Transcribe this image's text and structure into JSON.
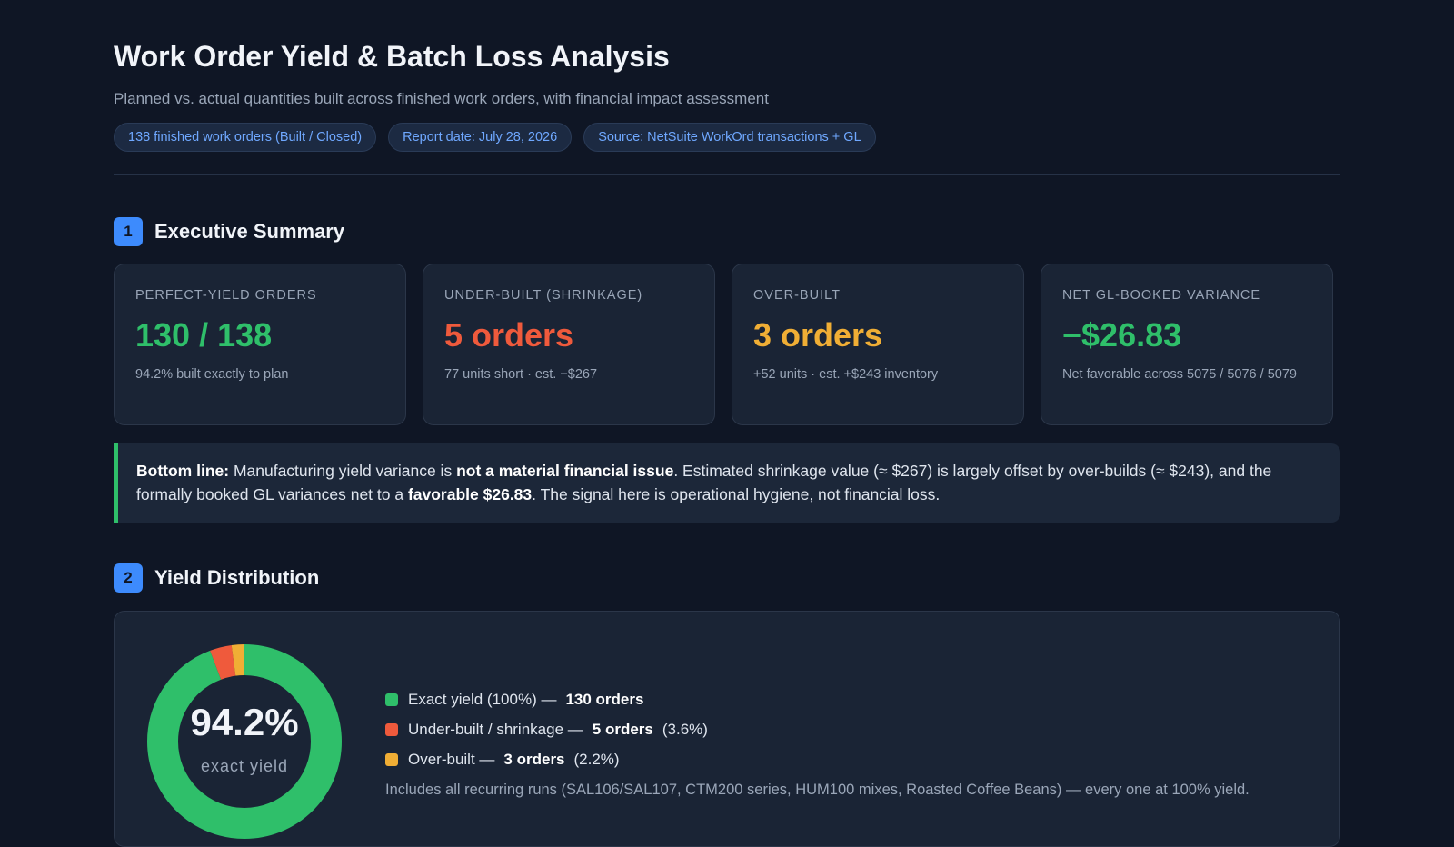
{
  "header": {
    "title": "Work Order Yield & Batch Loss Analysis",
    "subtitle": "Planned vs. actual quantities built across finished work orders, with financial impact assessment",
    "chips": [
      "138 finished work orders (Built / Closed)",
      "Report date: July 28, 2026",
      "Source: NetSuite WorkOrd transactions + GL"
    ]
  },
  "sections": {
    "summary": {
      "number": "1",
      "title": "Executive Summary"
    },
    "distribution": {
      "number": "2",
      "title": "Yield Distribution"
    }
  },
  "cards": [
    {
      "label": "PERFECT-YIELD ORDERS",
      "value": "130 / 138",
      "note": "94.2% built exactly to plan",
      "color": "#2fbf6a"
    },
    {
      "label": "UNDER-BUILT (SHRINKAGE)",
      "value": "5 orders",
      "note": "77 units short · est. −$267",
      "color": "#ef5a3c"
    },
    {
      "label": "OVER-BUILT",
      "value": "3 orders",
      "note": "+52 units · est. +$243 inventory",
      "color": "#f0ae35"
    },
    {
      "label": "NET GL-BOOKED VARIANCE",
      "value": "−$26.83",
      "note": "Net favorable across 5075 / 5076 / 5079",
      "color": "#2fbf6a"
    }
  ],
  "bottom_line": {
    "lead": "Bottom line:",
    "text1": " Manufacturing yield variance is ",
    "bold1": "not a material financial issue",
    "text2": ". Estimated shrinkage value (≈ $267) is largely offset by over-builds (≈ $243), and the formally booked GL variances net to a ",
    "bold2": "favorable $26.83",
    "text3": ". The signal here is operational hygiene, not financial loss."
  },
  "distribution": {
    "center_value": "94.2%",
    "center_label": "exact yield",
    "legend": [
      {
        "label": "Exact yield (100%) —",
        "count": "130 orders",
        "pct": "",
        "color": "#2fbf6a"
      },
      {
        "label": "Under-built / shrinkage —",
        "count": "5 orders",
        "pct": "(3.6%)",
        "color": "#ef5a3c"
      },
      {
        "label": "Over-built —",
        "count": "3 orders",
        "pct": "(2.2%)",
        "color": "#f0ae35"
      }
    ],
    "note": "Includes all recurring runs (SAL106/SAL107, CTM200 series, HUM100 mixes, Roasted Coffee Beans) — every one at 100% yield."
  },
  "chart_data": {
    "type": "pie",
    "categories": [
      "Exact yield (100%)",
      "Under-built / shrinkage",
      "Over-built"
    ],
    "values": [
      130,
      5,
      3
    ],
    "colors": [
      "#2fbf6a",
      "#ef5a3c",
      "#f0ae35"
    ]
  }
}
